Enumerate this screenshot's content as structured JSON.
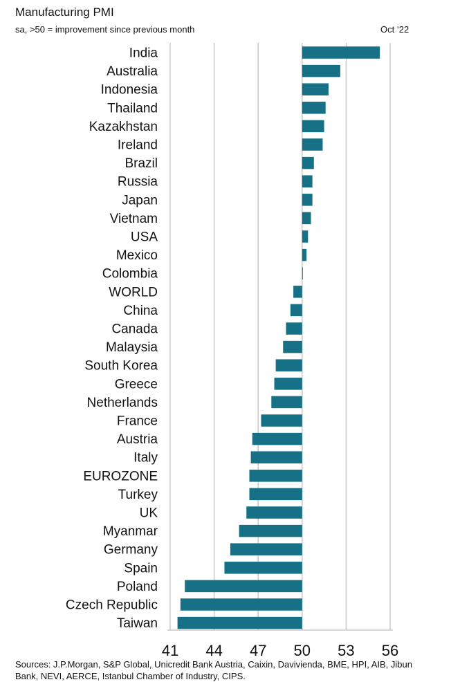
{
  "header": {
    "title": "Manufacturing PMI",
    "subtitle": "sa, >50 = improvement since previous month",
    "date": "Oct ‘22"
  },
  "footer": {
    "source": "Sources: J.P.Morgan, S&P Global, Unicredit Bank Austria, Caixin, Davivienda, BME, HPI, AIB, Jibun Bank, NEVI, AERCE, Istanbul Chamber of Industry, CIPS."
  },
  "colors": {
    "bar": "#167086",
    "grid": "#c8c8c8"
  },
  "chart_data": {
    "type": "bar",
    "orientation": "horizontal",
    "title": "Manufacturing PMI",
    "baseline": 50,
    "xlim": [
      41,
      56
    ],
    "ticks": [
      41,
      44,
      47,
      50,
      53,
      56
    ],
    "grid": true,
    "categories": [
      "India",
      "Australia",
      "Indonesia",
      "Thailand",
      "Kazakhstan",
      "Ireland",
      "Brazil",
      "Russia",
      "Japan",
      "Vietnam",
      "USA",
      "Mexico",
      "Colombia",
      "WORLD",
      "China",
      "Canada",
      "Malaysia",
      "South Korea",
      "Greece",
      "Netherlands",
      "France",
      "Austria",
      "Italy",
      "EUROZONE",
      "Turkey",
      "UK",
      "Myanmar",
      "Germany",
      "Spain",
      "Poland",
      "Czech Republic",
      "Taiwan"
    ],
    "values": [
      55.3,
      52.6,
      51.8,
      51.6,
      51.5,
      51.4,
      50.8,
      50.7,
      50.7,
      50.6,
      50.4,
      50.3,
      50.0,
      49.4,
      49.2,
      48.9,
      48.7,
      48.2,
      48.1,
      47.9,
      47.2,
      46.6,
      46.5,
      46.4,
      46.4,
      46.2,
      45.7,
      45.1,
      44.7,
      42.0,
      41.7,
      41.5
    ]
  }
}
